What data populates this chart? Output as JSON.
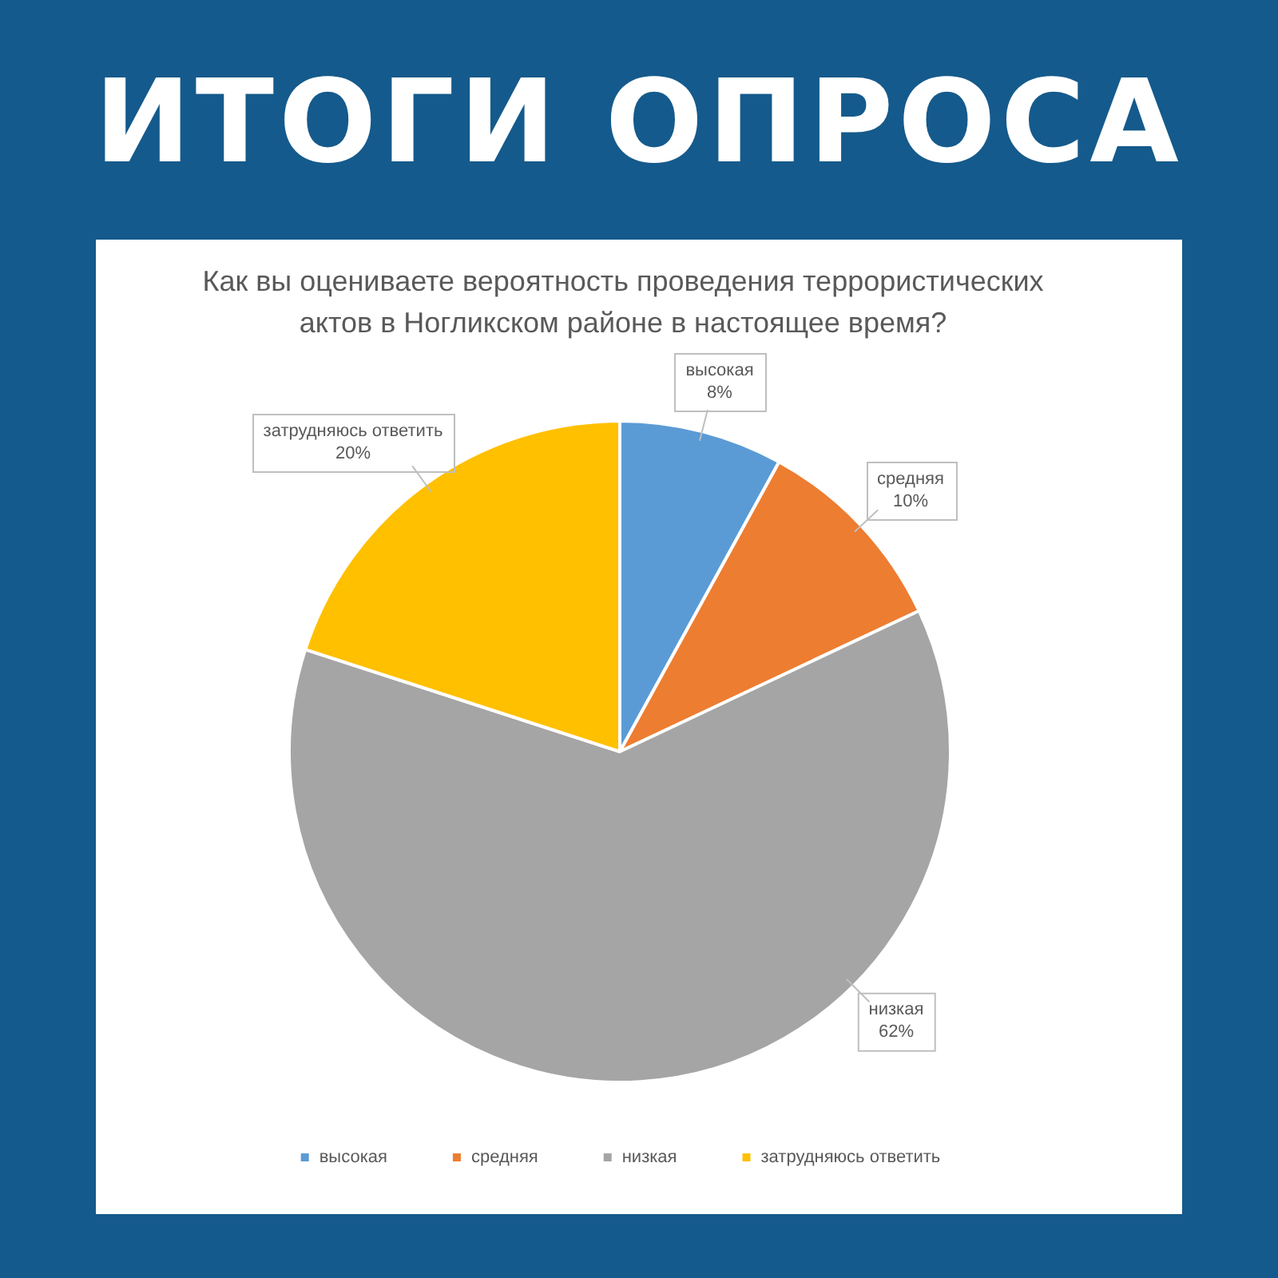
{
  "chart_data": {
    "type": "pie",
    "title": "ИТОГИ ОПРОСА",
    "subtitle": "Как вы оцениваете вероятность проведения террористических актов в Ногликском районе в настоящее время?",
    "categories": [
      "высокая",
      "средняя",
      "низкая",
      "затрудняюсь ответить"
    ],
    "values": [
      8,
      10,
      62,
      20
    ],
    "colors": [
      "#5b9bd5",
      "#ed7d31",
      "#a5a5a5",
      "#ffc000"
    ],
    "value_labels": [
      "8%",
      "10%",
      "62%",
      "20%"
    ],
    "legend": "bottom"
  }
}
